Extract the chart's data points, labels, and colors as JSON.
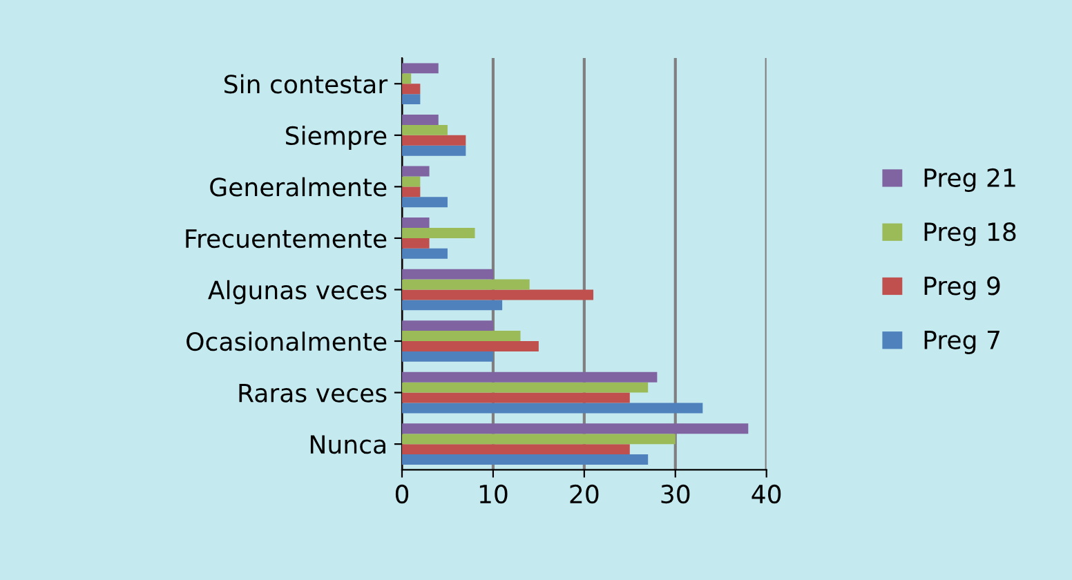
{
  "chart_data": {
    "type": "bar",
    "orientation": "horizontal",
    "categories": [
      "Sin contestar",
      "Siempre",
      "Generalmente",
      "Frecuentemente",
      "Algunas veces",
      "Ocasionalmente",
      "Raras veces",
      "Nunca"
    ],
    "series": [
      {
        "name": "Preg 7",
        "color": "#4f81bd",
        "values": [
          2,
          7,
          5,
          5,
          11,
          10,
          33,
          27
        ]
      },
      {
        "name": "Preg 9",
        "color": "#c0504d",
        "values": [
          2,
          7,
          2,
          3,
          21,
          15,
          25,
          25
        ]
      },
      {
        "name": "Preg 18",
        "color": "#9bbb59",
        "values": [
          1,
          5,
          2,
          8,
          14,
          13,
          27,
          30
        ]
      },
      {
        "name": "Preg 21",
        "color": "#8064a2",
        "values": [
          4,
          4,
          3,
          3,
          10,
          10,
          28,
          38
        ]
      }
    ],
    "xlim": [
      0,
      40
    ],
    "xticks": [
      0,
      10,
      20,
      30,
      40
    ],
    "grid": "x",
    "legend": "right"
  }
}
